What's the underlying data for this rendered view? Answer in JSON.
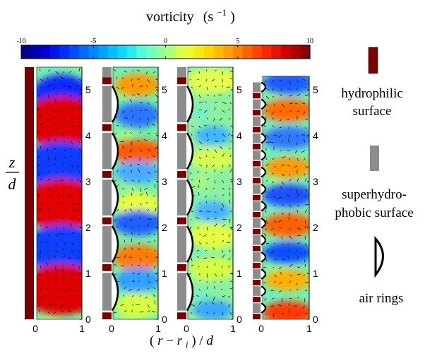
{
  "colorbar": {
    "title": "vorticity",
    "unit_base": "(s",
    "unit_exp": "−1",
    "unit_close": ")",
    "ticks": [
      "-10",
      "-5",
      "0",
      "5",
      "10"
    ],
    "colors": [
      "#00008f",
      "#0000d6",
      "#0033ff",
      "#0070ff",
      "#00aaff",
      "#14e0ff",
      "#5effd0",
      "#a0ff8a",
      "#e6ff40",
      "#ffe000",
      "#ffaa00",
      "#ff6a00",
      "#ff2a00",
      "#d40000",
      "#8a0000"
    ]
  },
  "y_axis": {
    "label_num": "z",
    "label_den": "d",
    "ticks": [
      "0",
      "1",
      "2",
      "3",
      "4",
      "5"
    ]
  },
  "x_axis": {
    "label_paren_open": "(",
    "label_r": "r",
    "label_minus": " − ",
    "label_ri": "r",
    "label_ri_sub": "i",
    "label_close": ")",
    "label_slash": " / ",
    "label_d": "d",
    "ticks": [
      "0",
      "1"
    ]
  },
  "legend": {
    "hydrophilic_line1": "hydrophilic",
    "hydrophilic_line2": "surface",
    "superhydrophobic_line1": "superhydro-",
    "superhydrophobic_line2": "phobic surface",
    "air_rings": "air rings",
    "hydrophilic_color": "#7a0000",
    "superhydrophobic_color": "#8c8c8c"
  },
  "panels": [
    {
      "name": "fully-hydrophilic",
      "vortex_pattern": "strong alternating bands"
    },
    {
      "name": "superhydrophobic-large-rings",
      "vortex_pattern": "moderate"
    },
    {
      "name": "superhydrophobic-rings-2",
      "vortex_pattern": "weak"
    },
    {
      "name": "superhydrophobic-small-rings",
      "vortex_pattern": "alternating bands"
    }
  ]
}
